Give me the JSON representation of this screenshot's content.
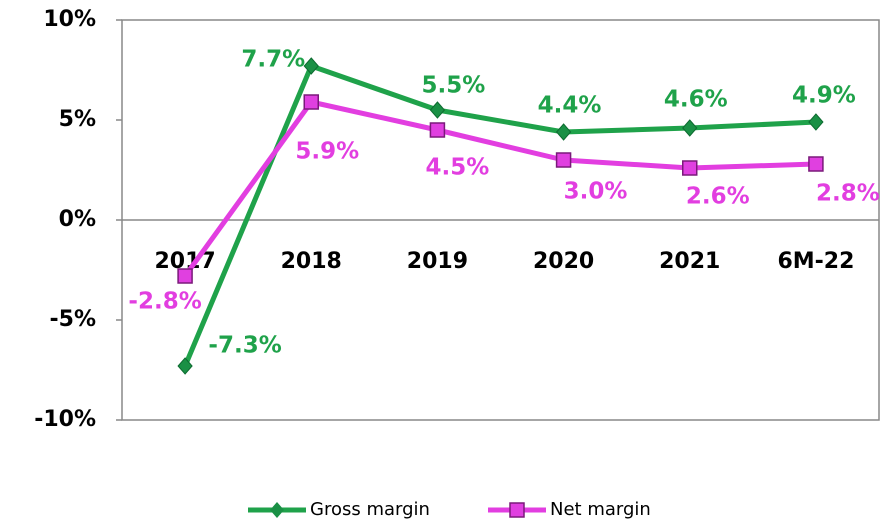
{
  "chart_data": {
    "type": "line",
    "categories": [
      "2017",
      "2018",
      "2019",
      "2020",
      "2021",
      "6M-22"
    ],
    "series": [
      {
        "name": "Gross margin",
        "color": "#1fa24a",
        "values": [
          -7.3,
          7.7,
          5.5,
          4.4,
          4.6,
          4.9
        ],
        "value_labels": [
          "-7.3%",
          "7.7%",
          "5.5%",
          "4.4%",
          "4.6%",
          "4.9%"
        ]
      },
      {
        "name": "Net margin",
        "color": "#e23ee0",
        "values": [
          -2.8,
          5.9,
          4.5,
          3.0,
          2.6,
          2.8
        ],
        "value_labels": [
          "-2.8%",
          "5.9%",
          "4.5%",
          "3.0%",
          "2.6%",
          "2.8%"
        ]
      }
    ],
    "ylim": [
      -10,
      10
    ],
    "yticks": [
      {
        "value": -10,
        "label": "-10%"
      },
      {
        "value": -5,
        "label": "-5%"
      },
      {
        "value": 0,
        "label": "0%"
      },
      {
        "value": 5,
        "label": "5%"
      },
      {
        "value": 10,
        "label": "10%"
      }
    ],
    "legend": "bottom"
  }
}
